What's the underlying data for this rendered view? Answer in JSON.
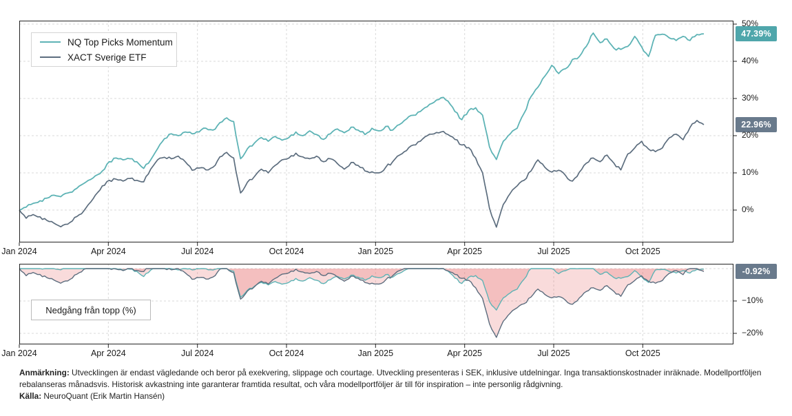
{
  "legend": {
    "items": [
      {
        "label": "NQ Top Picks Momentum",
        "color": "#5db3b5"
      },
      {
        "label": "XACT Sverige ETF",
        "color": "#5c6d7e"
      }
    ]
  },
  "drawdown_box_label": "Nedgång från topp (%)",
  "badges": {
    "nq_end": {
      "text": "47.39%",
      "value": 47.39,
      "color": "#4fa6ab"
    },
    "xact_end": {
      "text": "22.96%",
      "value": 22.96,
      "color": "#697a8c"
    },
    "drawdown_end": {
      "text": "-0.92%",
      "value": -0.92,
      "color": "#697a8c"
    }
  },
  "footnote": {
    "label1": "Anmärkning:",
    "text1": " Utvecklingen är endast vägledande och beror på exekvering, slippage och courtage. Utveckling presenteras i SEK, inklusive utdelningar. Inga transaktionskostnader inräknade. Modellportföljen rebalanseras månadsvis. Historisk avkastning inte garanterar framtida resultat, och våra modellportföljer är till för inspiration – inte personlig rådgivning.",
    "label2": "Källa:",
    "text2": " NeuroQuant (Erik Martin Hansén)"
  },
  "chart_data": [
    {
      "type": "line",
      "title": "Cumulative return in SEK (%), Jan 2024 - Oct 2025, weekly samples",
      "x_ticks": [
        "Jan 2024",
        "Apr 2024",
        "Jul 2024",
        "Oct 2024",
        "Jan 2025",
        "Apr 2025",
        "Jul 2025",
        "Oct 2025"
      ],
      "y_ticks": [
        0,
        10,
        20,
        30,
        40,
        50
      ],
      "y_tick_labels": [
        "0%",
        "10%",
        "20%",
        "30%",
        "40%",
        "50%"
      ],
      "ylim": [
        -8.7,
        50.9
      ],
      "grid": true,
      "legend_position": "upper-left",
      "series": [
        {
          "name": "NQ Top Picks Momentum",
          "color": "#5db3b5",
          "end_label": "47.39%",
          "values": [
            0,
            0.8,
            1.8,
            2.5,
            3.2,
            4.0,
            3.6,
            4.6,
            5.5,
            6.8,
            8.0,
            9.2,
            10.5,
            13.0,
            14.0,
            13.5,
            13.8,
            13.0,
            11.2,
            13.5,
            16.5,
            19.2,
            20.5,
            20.0,
            21.0,
            20.5,
            21.0,
            22.0,
            21.5,
            23.5,
            24.8,
            23.8,
            13.8,
            16.5,
            18.0,
            19.5,
            18.5,
            19.8,
            18.8,
            19.5,
            21.0,
            20.0,
            21.3,
            20.3,
            19.0,
            20.5,
            21.8,
            20.8,
            22.3,
            21.5,
            20.3,
            22.0,
            21.3,
            22.5,
            21.5,
            23.0,
            24.5,
            25.5,
            26.5,
            27.8,
            29.0,
            30.2,
            29.3,
            26.5,
            24.3,
            26.8,
            27.5,
            25.5,
            17.0,
            13.6,
            18.5,
            20.5,
            22.0,
            26.0,
            30.5,
            33.0,
            36.0,
            38.9,
            36.7,
            38.0,
            40.5,
            41.3,
            44.0,
            47.6,
            45.0,
            46.0,
            43.5,
            43.2,
            44.0,
            46.7,
            43.9,
            41.3,
            47.0,
            47.3,
            46.3,
            45.6,
            46.7,
            45.6,
            47.2,
            47.39
          ]
        },
        {
          "name": "XACT Sverige ETF",
          "color": "#5c6d7e",
          "end_label": "22.96%",
          "values": [
            0,
            -2.2,
            -1.2,
            -1.8,
            -2.8,
            -3.5,
            -4.5,
            -3.8,
            -2.0,
            -1.0,
            1.5,
            4.0,
            6.5,
            8.0,
            8.3,
            7.8,
            8.5,
            8.0,
            7.6,
            11.0,
            13.5,
            14.2,
            13.8,
            14.5,
            13.0,
            10.7,
            11.3,
            10.8,
            11.5,
            14.3,
            15.5,
            14.0,
            4.6,
            7.5,
            9.0,
            11.0,
            10.0,
            12.0,
            13.5,
            14.0,
            15.3,
            14.3,
            13.8,
            14.5,
            13.0,
            13.8,
            12.5,
            11.0,
            12.8,
            12.0,
            10.5,
            10.3,
            10.0,
            11.5,
            13.0,
            14.8,
            16.0,
            17.5,
            18.5,
            20.0,
            20.5,
            21.0,
            20.3,
            19.0,
            17.5,
            16.8,
            14.0,
            10.0,
            0.5,
            -4.6,
            1.5,
            4.5,
            6.5,
            8.0,
            10.5,
            13.5,
            11.5,
            10.2,
            10.7,
            9.3,
            7.8,
            10.2,
            12.6,
            14.0,
            13.0,
            14.8,
            12.6,
            10.8,
            15.1,
            16.7,
            18.5,
            16.4,
            15.7,
            16.7,
            19.4,
            20.4,
            18.9,
            22.2,
            24.1,
            22.96
          ]
        }
      ]
    },
    {
      "type": "area",
      "title": "Nedgång från topp (%)",
      "x_ticks": [
        "Jan 2024",
        "Apr 2024",
        "Jul 2024",
        "Oct 2024",
        "Jan 2025",
        "Apr 2025",
        "Jul 2025",
        "Oct 2025"
      ],
      "y_ticks": [
        -10,
        -20
      ],
      "y_tick_labels": [
        "−10%",
        "−20%"
      ],
      "ylim": [
        1.6,
        -23.6
      ],
      "grid": true,
      "derived_from": "drawdown from running peak of the two series above",
      "fill_color": "rgba(228,106,106,0.24)",
      "end_label": "-0.92%"
    }
  ]
}
